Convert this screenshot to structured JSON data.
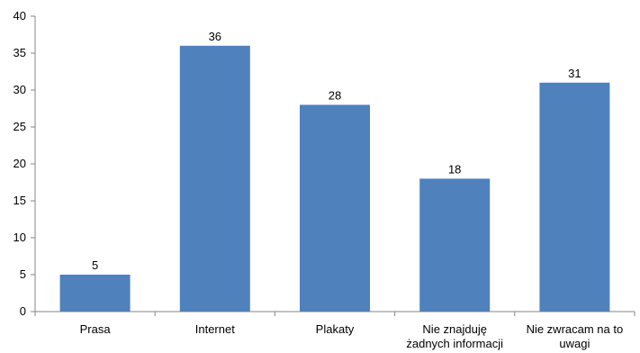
{
  "chart_data": {
    "type": "bar",
    "categories": [
      [
        "Prasa"
      ],
      [
        "Internet"
      ],
      [
        "Plakaty"
      ],
      [
        "Nie znajduję",
        "żadnych informacji"
      ],
      [
        "Nie zwracam na to",
        "uwagi"
      ]
    ],
    "values": [
      5,
      36,
      28,
      18,
      31
    ],
    "ylim": [
      0,
      40
    ],
    "yticks": [
      0,
      5,
      10,
      15,
      20,
      25,
      30,
      35,
      40
    ],
    "grid": false,
    "legend": "none",
    "colors": {
      "bar": "#4f81bd",
      "axis": "#868686"
    }
  }
}
